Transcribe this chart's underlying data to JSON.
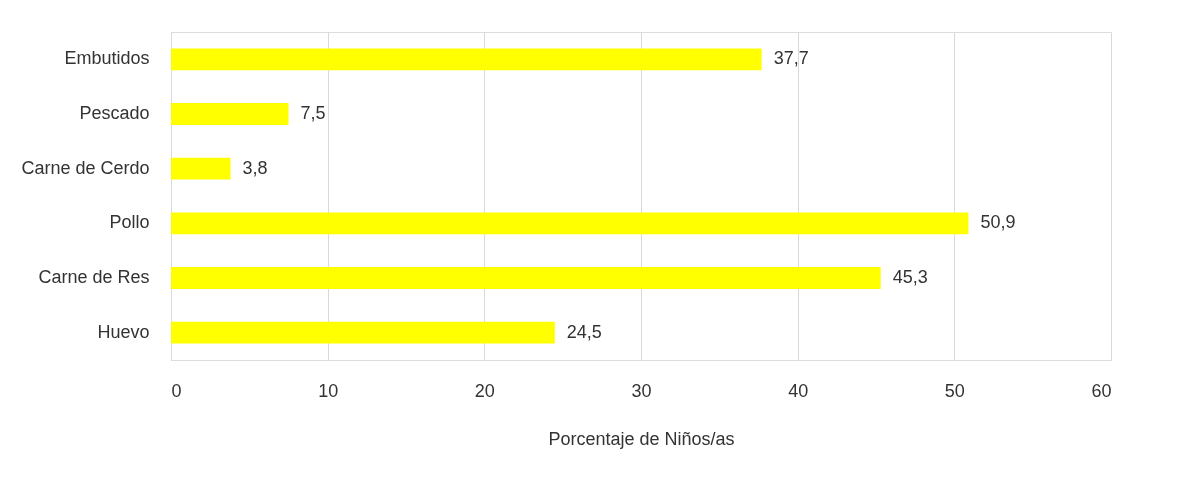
{
  "chart_data": {
    "type": "bar",
    "orientation": "horizontal",
    "xlabel": "Porcentaje de Niños/as",
    "categories": [
      "Embutidos",
      "Pescado",
      "Carne de Cerdo",
      "Pollo",
      "Carne de Res",
      "Huevo"
    ],
    "values": [
      37.7,
      7.5,
      3.8,
      50.9,
      45.3,
      24.5
    ],
    "value_labels": [
      "37,7",
      "7,5",
      "3,8",
      "50,9",
      "45,3",
      "24,5"
    ],
    "color": "#ffff00",
    "xlim": [
      0,
      60
    ],
    "xticks": [
      0,
      10,
      20,
      30,
      40,
      50,
      60
    ],
    "grid": "x"
  }
}
